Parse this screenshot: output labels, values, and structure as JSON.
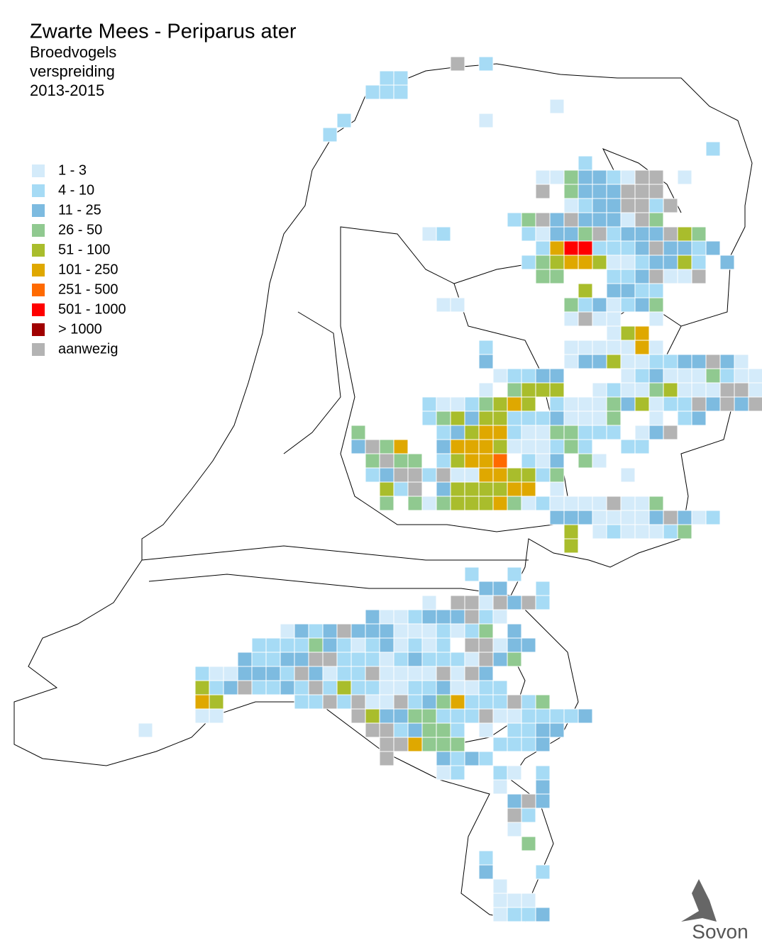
{
  "title": "Zwarte Mees - Periparus ater",
  "subtitle": [
    "Broedvogels",
    "verspreiding",
    "2013-2015"
  ],
  "legend": [
    {
      "label": "1 - 3",
      "color": "#d4ebfa"
    },
    {
      "label": "4 - 10",
      "color": "#a6dbf5"
    },
    {
      "label": "11 - 25",
      "color": "#7dbbe0"
    },
    {
      "label": "26 - 50",
      "color": "#90c990"
    },
    {
      "label": "51 - 100",
      "color": "#a9bd2c"
    },
    {
      "label": "101 - 250",
      "color": "#dfa800"
    },
    {
      "label": "251 - 500",
      "color": "#ff6a00"
    },
    {
      "label": "501 - 1000",
      "color": "#ff0000"
    },
    {
      "label": "> 1000",
      "color": "#a00000"
    },
    {
      "label": "aanwezig",
      "color": "#b3b3b3"
    }
  ],
  "logo": "Sovon"
}
